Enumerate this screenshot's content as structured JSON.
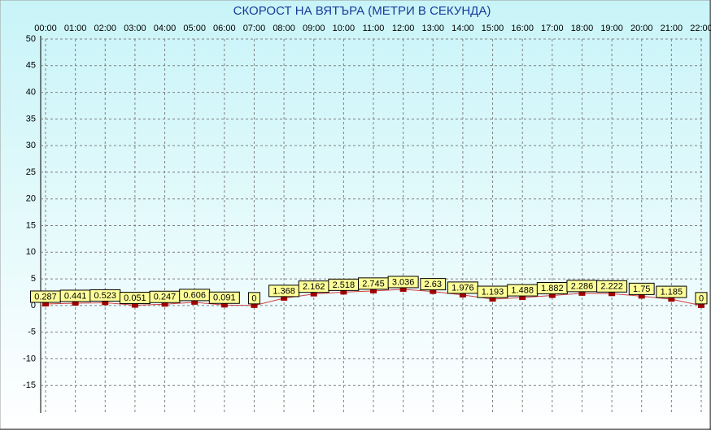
{
  "chart_data": {
    "type": "line",
    "title": "СКОРОСТ НА ВЯТЪРА (МЕТРИ В СЕКУНДА)",
    "categories": [
      "00:00",
      "01:00",
      "02:00",
      "03:00",
      "04:00",
      "05:00",
      "06:00",
      "07:00",
      "08:00",
      "09:00",
      "10:00",
      "11:00",
      "12:00",
      "13:00",
      "14:00",
      "15:00",
      "16:00",
      "17:00",
      "18:00",
      "19:00",
      "20:00",
      "21:00",
      "22:00"
    ],
    "values": [
      0.287,
      0.441,
      0.523,
      0.051,
      0.247,
      0.606,
      0.091,
      0,
      1.368,
      2.162,
      2.518,
      2.745,
      3.036,
      2.63,
      1.976,
      1.193,
      1.488,
      1.882,
      2.286,
      2.222,
      1.75,
      1.185,
      0
    ],
    "color": "#d04040",
    "marker_color": "#a00000",
    "ylim": [
      -20,
      50
    ],
    "yticks": [
      50,
      45,
      40,
      35,
      30,
      25,
      20,
      15,
      10,
      5,
      0,
      -5,
      -10,
      -15
    ],
    "grid": true
  }
}
